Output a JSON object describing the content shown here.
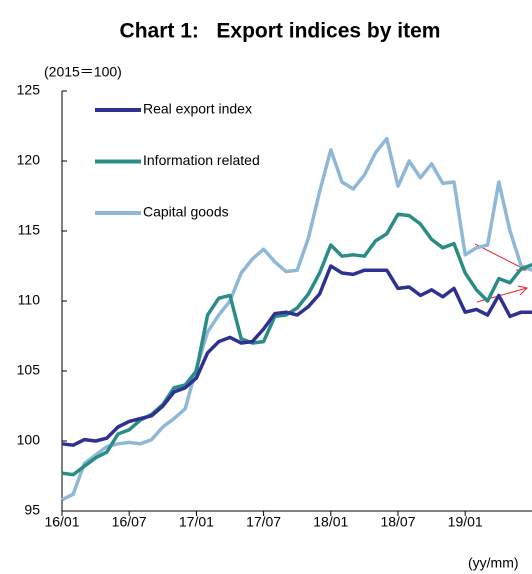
{
  "chart_data": {
    "type": "line",
    "title": "Chart 1:   Export indices by item",
    "y_label": "(2015＝100)",
    "x_label": "(yy/mm)",
    "categories": [
      "16/01",
      null,
      null,
      null,
      null,
      null,
      "16/07",
      null,
      null,
      null,
      null,
      null,
      "17/01",
      null,
      null,
      null,
      null,
      null,
      "17/07",
      null,
      null,
      null,
      null,
      null,
      "18/01",
      null,
      null,
      null,
      null,
      null,
      "18/07",
      null,
      null,
      null,
      null,
      null,
      "19/01",
      null,
      null,
      null,
      null,
      null,
      null
    ],
    "series": [
      {
        "name": "Real export index",
        "color": "#2e3192",
        "values": [
          99.8,
          99.7,
          100.1,
          100.0,
          100.2,
          101.0,
          101.4,
          101.6,
          101.8,
          102.5,
          103.5,
          103.8,
          104.5,
          106.3,
          107.1,
          107.4,
          107.0,
          107.1,
          108.0,
          109.1,
          109.2,
          109.0,
          109.6,
          110.5,
          112.5,
          112.0,
          111.9,
          112.2,
          112.2,
          112.2,
          110.9,
          111.0,
          110.4,
          110.8,
          110.3,
          110.9,
          109.2,
          109.4,
          109.0,
          110.4,
          108.9,
          109.2,
          109.2
        ]
      },
      {
        "name": "Information related",
        "color": "#2a8c86",
        "values": [
          97.7,
          97.6,
          98.2,
          98.8,
          99.2,
          100.5,
          100.8,
          101.5,
          101.9,
          102.6,
          103.8,
          104.0,
          105.0,
          109.0,
          110.2,
          110.4,
          107.3,
          107.0,
          107.1,
          108.9,
          109.0,
          109.5,
          110.5,
          112.0,
          114.0,
          113.2,
          113.3,
          113.2,
          114.3,
          114.8,
          116.2,
          116.1,
          115.5,
          114.4,
          113.8,
          114.1,
          112.0,
          110.8,
          110.0,
          111.6,
          111.3,
          112.3,
          112.6
        ]
      },
      {
        "name": "Capital goods",
        "color": "#8fb8d8",
        "values": [
          95.8,
          96.2,
          98.4,
          99.0,
          99.6,
          99.8,
          99.9,
          99.8,
          100.1,
          101.0,
          101.6,
          102.3,
          105.2,
          107.8,
          109.0,
          110.0,
          112.0,
          113.0,
          113.7,
          112.8,
          112.1,
          112.2,
          114.5,
          117.8,
          120.8,
          118.5,
          118.0,
          119.0,
          120.6,
          121.6,
          118.2,
          120.0,
          118.8,
          119.8,
          118.4,
          118.5,
          113.3,
          113.8,
          114.0,
          118.5,
          115.0,
          112.5,
          112.2
        ]
      }
    ],
    "ylim": [
      95,
      125
    ],
    "yticks": [
      95,
      100,
      105,
      110,
      115,
      120,
      125
    ]
  }
}
